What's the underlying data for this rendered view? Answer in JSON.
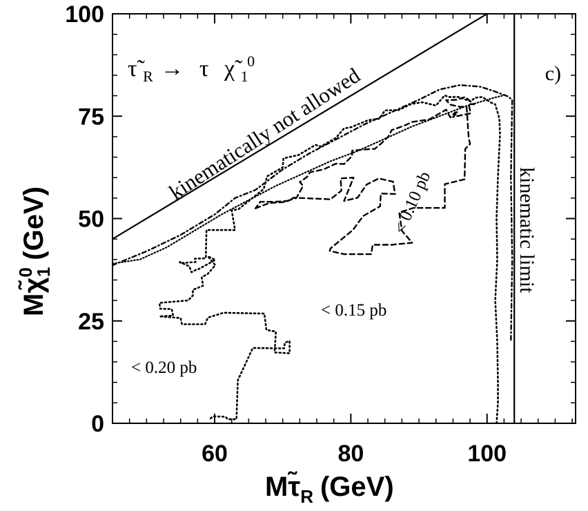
{
  "chart_data": {
    "type": "line",
    "panel_label": "c)",
    "process": {
      "parent": "τ̃",
      "parent_sub": "R",
      "arrow": "→",
      "daughter1": "τ",
      "daughter2": "χ̃",
      "daughter2_sub": "1",
      "daughter2_sup": "0"
    },
    "xlabel": {
      "prefix": "M",
      "sym": "τ̃",
      "sub": "R",
      "unit": "(GeV)"
    },
    "ylabel": {
      "prefix": "M",
      "sym": "χ̃",
      "sup": "0",
      "sub": "1",
      "unit": "(GeV)"
    },
    "xlim": [
      45,
      113
    ],
    "ylim": [
      0,
      100
    ],
    "xticks": [
      60,
      80,
      100
    ],
    "yticks": [
      0,
      25,
      50,
      75,
      100
    ],
    "xtick_labels": [
      "60",
      "80",
      "100"
    ],
    "ytick_labels": [
      "0",
      "25",
      "50",
      "75",
      "100"
    ],
    "x_minor_step": 2.5,
    "y_minor_step": 5,
    "annotations": {
      "forbidden": "kinematically not allowed",
      "limit": "kinematic  limit",
      "c020": "< 0.20 pb",
      "c015": "< 0.15 pb",
      "c010": "< 0.10 pb"
    },
    "boundaries": [
      {
        "name": "kinematic-diagonal",
        "style": "solid",
        "x": [
          45,
          104
        ],
        "y": [
          45,
          104
        ]
      },
      {
        "name": "kinematic-limit",
        "style": "solid",
        "x": [
          104,
          104
        ],
        "y": [
          0,
          104
        ]
      }
    ],
    "series": [
      {
        "style": "dotted",
        "x": [
          59.4,
          59.8,
          61.6,
          61.9,
          63.2,
          63.4,
          65.6,
          70.2,
          70.3,
          71.0,
          71.0,
          68.8,
          69.0,
          67.6,
          67.3,
          61.3,
          59.0,
          58.6,
          55.2,
          55.0,
          51.9,
          53.9,
          53.7,
          52.0,
          51.9,
          53.2,
          56.1,
          56.8,
          56.8,
          58.3,
          58.1,
          59.0,
          60.1,
          59.0,
          60.1,
          57.6,
          57.4,
          56.6,
          56.3,
          54.9,
          54.9,
          57.2,
          57.1,
          58.7,
          58.8,
          63.0,
          62.5,
          63.5,
          65.0,
          67.2,
          67.7,
          70.0,
          70.1,
          72.3,
          74.8,
          75.6,
          77.8,
          79.0,
          80.0,
          82.5,
          84.2,
          85.0,
          87.0,
          88.9,
          90.5,
          92.5,
          93.8,
          94.3,
          95.8,
          97.6,
          98.2,
          99.3,
          100.6,
          101.2,
          101.8,
          101.9,
          101.6,
          101.4,
          101.5,
          101.2,
          101.5,
          101.6,
          101.6,
          101.4
        ],
        "y": [
          1.2,
          1.7,
          1.6,
          1.0,
          1.0,
          10.5,
          18.4,
          18.3,
          19.7,
          20.1,
          17.1,
          17.3,
          22.4,
          22.8,
          26.8,
          27.0,
          25.8,
          24.2,
          24.2,
          25.7,
          26.1,
          26.3,
          27.9,
          28.0,
          29.4,
          29.6,
          30.0,
          31.2,
          32.6,
          33.6,
          35.7,
          36.5,
          38.6,
          40.8,
          39.9,
          37.6,
          37.6,
          36.9,
          38.3,
          39.4,
          39.1,
          39.4,
          40.2,
          40.3,
          47.2,
          47.2,
          52.0,
          52.3,
          54.3,
          57.2,
          60.3,
          62.5,
          64.7,
          65.5,
          68.0,
          67.6,
          69.7,
          72.0,
          72.3,
          74.0,
          74.4,
          76.4,
          76.5,
          78.0,
          78.4,
          77.6,
          80.1,
          79.7,
          79.7,
          78.6,
          79.5,
          79.7,
          78.3,
          77.9,
          74.5,
          70.6,
          60.2,
          50.0,
          40.0,
          30.0,
          20.0,
          10.0,
          5.0,
          0.0
        ]
      },
      {
        "style": "dashed",
        "x": [
          66.0,
          68.0,
          70.0,
          72.0,
          73.0,
          72.5,
          73.6,
          74.0,
          76.0,
          77.8,
          79.0,
          80.2,
          80.2,
          83.0,
          83.5,
          84.5,
          85.5,
          86.0,
          88.0,
          89.0,
          91.5,
          94.0,
          94.6,
          95.3,
          95.7,
          95.0,
          97.6,
          97.3,
          98.1,
          96.8,
          95.5,
          94.0,
          94.6,
          96.0,
          97.0,
          97.3,
          97.5,
          96.8,
          96.7,
          93.8,
          93.8,
          89.2,
          87.1,
          87.5,
          89.0,
          86.0,
          83.2,
          83.0,
          79.0,
          76.9,
          77.0,
          80.3,
          81.8,
          84.3,
          84.4,
          86.5,
          86.2,
          84.1,
          82.3,
          81.0,
          79.0,
          80.4,
          78.5,
          78.6,
          77.0,
          71.6,
          70.8,
          68.8,
          66.7,
          66.0
        ],
        "y": [
          52.5,
          53.8,
          54.0,
          55.0,
          58.0,
          58.9,
          60.2,
          61.3,
          62.0,
          63.4,
          63.3,
          65.3,
          66.6,
          67.0,
          67.0,
          68.4,
          70.0,
          71.6,
          72.8,
          73.6,
          74.2,
          76.6,
          74.7,
          75.9,
          76.0,
          74.8,
          75.7,
          78.0,
          77.9,
          79.7,
          79.0,
          78.9,
          77.8,
          77.3,
          77.3,
          69.8,
          68.2,
          67.0,
          59.6,
          58.4,
          52.6,
          52.6,
          51.5,
          47.0,
          44.1,
          43.6,
          43.6,
          41.3,
          41.3,
          42.1,
          42.7,
          47.2,
          50.6,
          53.0,
          56.1,
          56.0,
          59.0,
          59.8,
          58.3,
          55.1,
          54.3,
          60.0,
          59.8,
          56.8,
          54.7,
          55.1,
          54.3,
          54.1,
          54.1,
          52.5
        ]
      },
      {
        "style": "dotted-small",
        "x": [
          45.0,
          49.0,
          53.0,
          57.0,
          61.0,
          65.0,
          69.0,
          73.0,
          77.0,
          81.0,
          85.0,
          89.0,
          93.0,
          97.0,
          101.0,
          102.5
        ],
        "y": [
          39.0,
          40.0,
          43.0,
          47.0,
          51.0,
          54.5,
          58.0,
          61.0,
          64.0,
          66.5,
          69.5,
          72.5,
          75.0,
          77.5,
          79.5,
          80.1
        ]
      },
      {
        "style": "dash-dot",
        "x": [
          45.0,
          50.0,
          55.0,
          60.0,
          63.0,
          66.0,
          70.0,
          74.0,
          78.0,
          82.0,
          86.0,
          90.0,
          93.0,
          96.0,
          99.0,
          100.9,
          102.8,
          103.1,
          103.7,
          103.5,
          103.7,
          103.5
        ],
        "y": [
          38.6,
          42.0,
          46.0,
          51.0,
          55.0,
          57.0,
          62.0,
          66.0,
          69.5,
          73.0,
          76.0,
          79.0,
          81.5,
          82.6,
          82.2,
          81.2,
          80.0,
          79.8,
          79.0,
          60.0,
          40.0,
          20.0
        ]
      }
    ]
  }
}
